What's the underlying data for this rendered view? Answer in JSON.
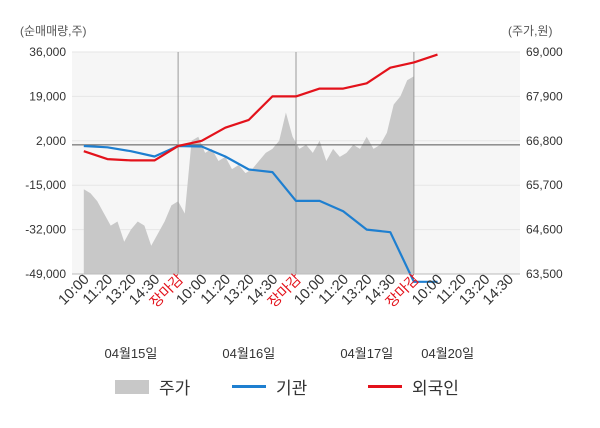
{
  "units": {
    "left": "(순매매량,주)",
    "right": "(주가,원)"
  },
  "legend": [
    {
      "label": "주가",
      "kind": "area",
      "color": "#c8c8c8"
    },
    {
      "label": "기관",
      "kind": "line",
      "color": "#1e7fd0"
    },
    {
      "label": "외국인",
      "kind": "line",
      "color": "#e3121b"
    }
  ],
  "chart_data": {
    "type": "line",
    "left_axis": {
      "ticks": [
        "36,000",
        "19,000",
        "2,000",
        "-15,000",
        "-32,000",
        "-49,000"
      ],
      "min": -49000,
      "max": 36000
    },
    "right_axis": {
      "ticks": [
        "69,000",
        "67,900",
        "66,800",
        "65,700",
        "64,600",
        "63,500"
      ],
      "min": 63500,
      "max": 69000
    },
    "reference_line": 66700,
    "x_labels": [
      {
        "text": "10:00",
        "color": "#333333"
      },
      {
        "text": "11:20",
        "color": "#333333"
      },
      {
        "text": "13:20",
        "color": "#333333"
      },
      {
        "text": "14:30",
        "color": "#333333"
      },
      {
        "text": "장마감",
        "color": "#e3121b"
      },
      {
        "text": "10:00",
        "color": "#333333"
      },
      {
        "text": "11:20",
        "color": "#333333"
      },
      {
        "text": "13:20",
        "color": "#333333"
      },
      {
        "text": "14:30",
        "color": "#333333"
      },
      {
        "text": "장마감",
        "color": "#e3121b"
      },
      {
        "text": "10:00",
        "color": "#333333"
      },
      {
        "text": "11:20",
        "color": "#333333"
      },
      {
        "text": "13:20",
        "color": "#333333"
      },
      {
        "text": "14:30",
        "color": "#333333"
      },
      {
        "text": "장마감",
        "color": "#e3121b"
      },
      {
        "text": "10:00",
        "color": "#333333"
      },
      {
        "text": "11:20",
        "color": "#333333"
      },
      {
        "text": "13:20",
        "color": "#333333"
      },
      {
        "text": "14:30",
        "color": "#333333"
      }
    ],
    "dates": [
      "04월15일",
      "04월16일",
      "04월17일",
      "04월20일"
    ],
    "day_separator_after": [
      4,
      9,
      14
    ],
    "price_series": {
      "name": "주가",
      "x_range": [
        0,
        14
      ],
      "values": [
        65600,
        65500,
        65300,
        65000,
        64700,
        64800,
        64300,
        64600,
        64800,
        64700,
        64200,
        64500,
        64800,
        65200,
        65300,
        65000,
        66800,
        66900,
        66500,
        66600,
        66300,
        66400,
        66100,
        66200,
        66000,
        66100,
        66300,
        66500,
        66600,
        66800,
        67500,
        66900,
        66600,
        66700,
        66500,
        66800,
        66300,
        66600,
        66400,
        66500,
        66700,
        66600,
        66900,
        66600,
        66700,
        67000,
        67700,
        67900,
        68300,
        68400
      ]
    },
    "series": [
      {
        "name": "기관",
        "color": "#1e7fd0",
        "points": [
          [
            0,
            0
          ],
          [
            1,
            -500
          ],
          [
            2,
            -2000
          ],
          [
            3,
            -4000
          ],
          [
            4,
            0
          ],
          [
            5,
            -200
          ],
          [
            6,
            -4000
          ],
          [
            7,
            -9000
          ],
          [
            8,
            -10000
          ],
          [
            9,
            -21000
          ],
          [
            10,
            -21000
          ],
          [
            11,
            -25000
          ],
          [
            12,
            -32000
          ],
          [
            13,
            -33000
          ],
          [
            14,
            -52000
          ],
          [
            15,
            -52000
          ]
        ]
      },
      {
        "name": "외국인",
        "color": "#e3121b",
        "points": [
          [
            0,
            -2000
          ],
          [
            1,
            -5000
          ],
          [
            2,
            -5500
          ],
          [
            3,
            -5500
          ],
          [
            4,
            0
          ],
          [
            5,
            2000
          ],
          [
            6,
            7000
          ],
          [
            7,
            10000
          ],
          [
            8,
            19000
          ],
          [
            9,
            19000
          ],
          [
            10,
            22000
          ],
          [
            11,
            22000
          ],
          [
            12,
            24000
          ],
          [
            13,
            30000
          ],
          [
            14,
            32000
          ],
          [
            15,
            35000
          ]
        ]
      }
    ]
  }
}
